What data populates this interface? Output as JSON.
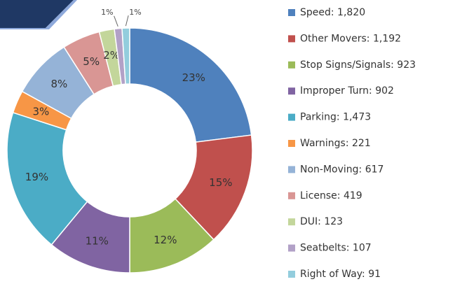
{
  "chart_data": {
    "type": "donut",
    "categories": [
      "Speed: 1,820",
      "Other Movers: 1,192",
      "Stop Signs/Signals: 923",
      "Improper Turn: 902",
      "Parking: 1,473",
      "Warnings: 221",
      "Non-Moving: 617",
      "License: 419",
      "DUI: 123",
      "Seatbelts: 107",
      "Right of Way: 91"
    ],
    "values": [
      23,
      15,
      12,
      11,
      19,
      3,
      8,
      5,
      2,
      1,
      1
    ],
    "value_labels": [
      "23%",
      "15%",
      "12%",
      "11%",
      "19%",
      "3%",
      "8%",
      "5%",
      "2%",
      "1%",
      "1%"
    ],
    "colors": [
      "#4f81bd",
      "#c0504d",
      "#9bbb59",
      "#8064a2",
      "#4bacc6",
      "#f79646",
      "#95b3d7",
      "#d99694",
      "#c3d69b",
      "#b2a1c7",
      "#93cddd"
    ],
    "legend": "right"
  }
}
